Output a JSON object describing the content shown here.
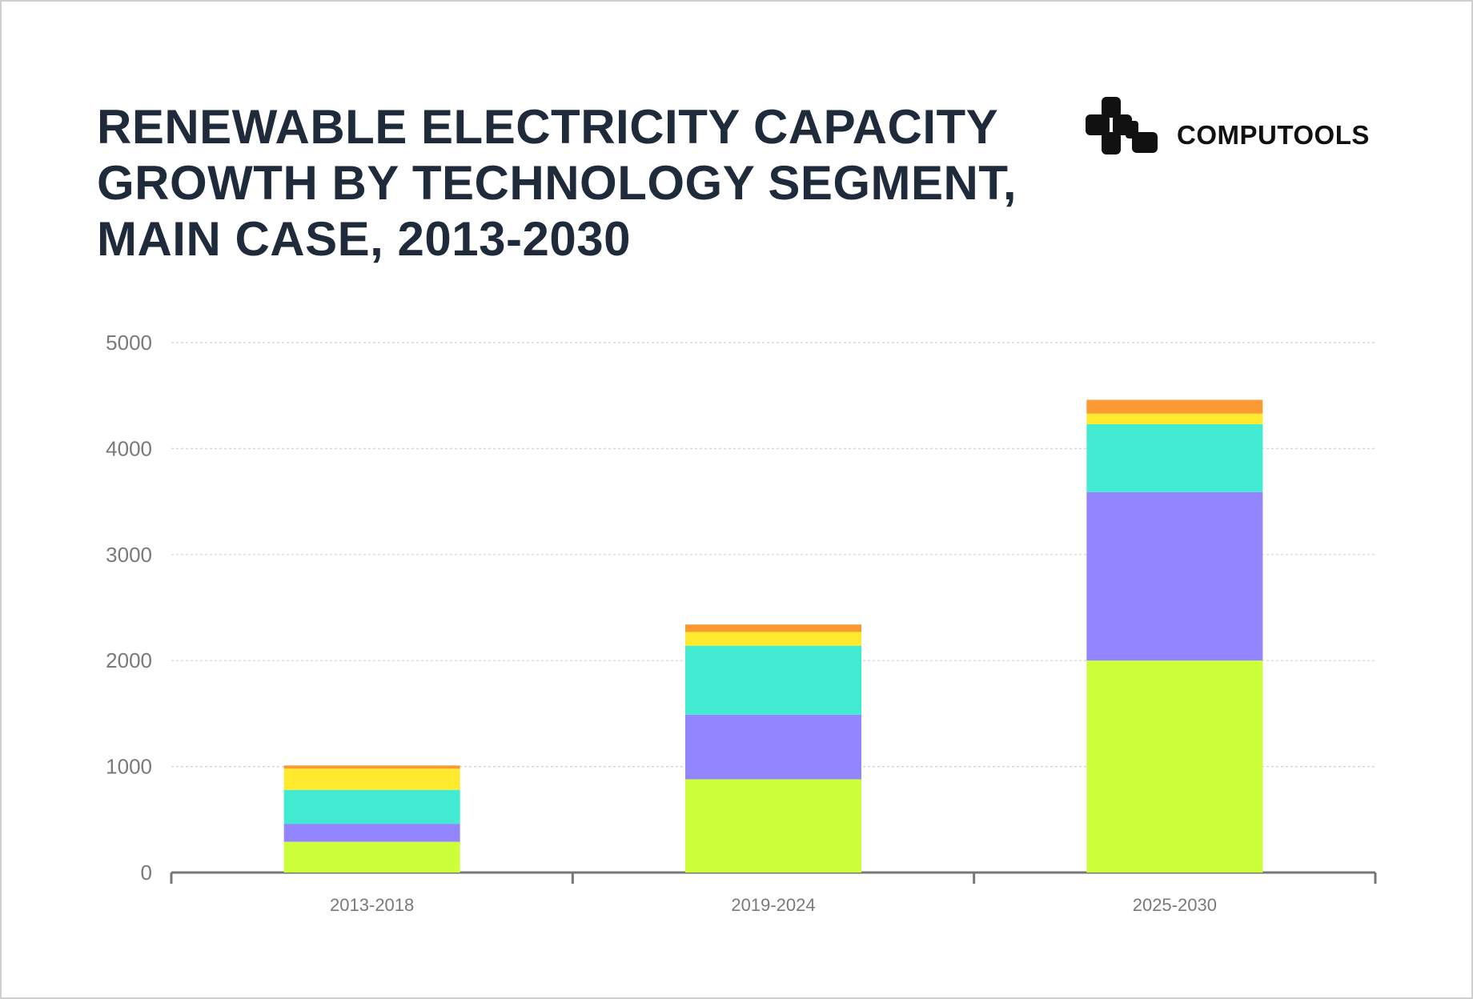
{
  "header": {
    "title": "RENEWABLE ELECTRICITY CAPACITY\nGROWTH BY TECHNOLOGY SEGMENT,\nMAIN CASE, 2013-2030"
  },
  "brand": {
    "name": "COMPUTOOLS",
    "icon": "computools-logo-icon"
  },
  "chart_data": {
    "type": "bar",
    "stacked": true,
    "title": "RENEWABLE ELECTRICITY CAPACITY GROWTH BY TECHNOLOGY SEGMENT, MAIN CASE, 2013-2030",
    "xlabel": "",
    "ylabel": "",
    "categories": [
      "2013-2018",
      "2019-2024",
      "2025-2030"
    ],
    "ylim": [
      0,
      5000
    ],
    "yticks": [
      0,
      1000,
      2000,
      3000,
      4000,
      5000
    ],
    "grid": true,
    "legend": "none",
    "series": [
      {
        "color": "#cdff3a",
        "values": [
          290,
          880,
          2000
        ]
      },
      {
        "color": "#9385fe",
        "values": [
          170,
          610,
          1590
        ]
      },
      {
        "color": "#40ebd2",
        "values": [
          320,
          650,
          640
        ]
      },
      {
        "color": "#ffea2e",
        "values": [
          200,
          130,
          100
        ]
      },
      {
        "color": "#fb9a33",
        "values": [
          30,
          70,
          130
        ]
      }
    ]
  }
}
